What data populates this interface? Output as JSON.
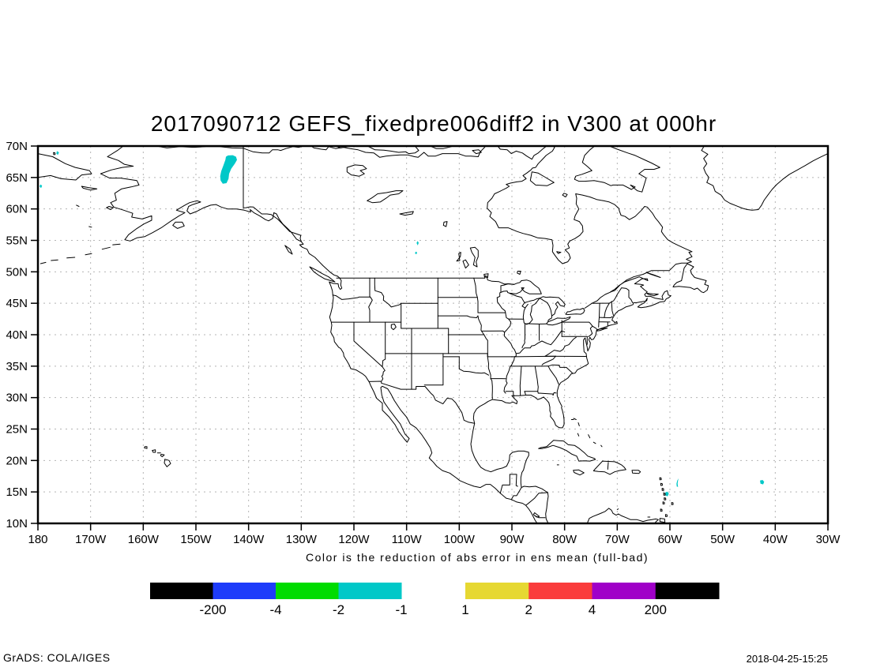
{
  "title": "2017090712 GEFS_fixedpre006diff2 in V300 at 000hr",
  "caption": "Color is the reduction of abs error in ens mean (full-bad)",
  "footer": {
    "left": "GrADS: COLA/IGES",
    "right": "2018-04-25-15:25"
  },
  "map": {
    "lon_min": -180,
    "lon_max": -30,
    "lat_min": 10,
    "lat_max": 70,
    "grid_color": "#b4b4b4",
    "line_color": "#000000",
    "lat_ticks": [
      {
        "lat": 70,
        "label": "70N"
      },
      {
        "lat": 65,
        "label": "65N"
      },
      {
        "lat": 60,
        "label": "60N"
      },
      {
        "lat": 55,
        "label": "55N"
      },
      {
        "lat": 50,
        "label": "50N"
      },
      {
        "lat": 45,
        "label": "45N"
      },
      {
        "lat": 40,
        "label": "40N"
      },
      {
        "lat": 35,
        "label": "35N"
      },
      {
        "lat": 30,
        "label": "30N"
      },
      {
        "lat": 25,
        "label": "25N"
      },
      {
        "lat": 20,
        "label": "20N"
      },
      {
        "lat": 15,
        "label": "15N"
      },
      {
        "lat": 10,
        "label": "10N"
      }
    ],
    "lon_ticks": [
      {
        "lon": -180,
        "label": "180"
      },
      {
        "lon": -170,
        "label": "170W"
      },
      {
        "lon": -160,
        "label": "160W"
      },
      {
        "lon": -150,
        "label": "150W"
      },
      {
        "lon": -140,
        "label": "140W"
      },
      {
        "lon": -130,
        "label": "130W"
      },
      {
        "lon": -120,
        "label": "120W"
      },
      {
        "lon": -110,
        "label": "110W"
      },
      {
        "lon": -100,
        "label": "100W"
      },
      {
        "lon": -90,
        "label": "90W"
      },
      {
        "lon": -80,
        "label": "80W"
      },
      {
        "lon": -70,
        "label": "70W"
      },
      {
        "lon": -60,
        "label": "60W"
      },
      {
        "lon": -50,
        "label": "50W"
      },
      {
        "lon": -40,
        "label": "40W"
      },
      {
        "lon": -30,
        "label": "30W"
      }
    ]
  },
  "colorbar": {
    "left": {
      "segments": [
        "#000000",
        "#1e3cfa",
        "#00dc00",
        "#00c8c8"
      ],
      "labels": [
        "-200",
        "-4",
        "-2",
        "-1"
      ],
      "labels_at": "segment-end"
    },
    "right": {
      "segments": [
        "#e6d832",
        "#fa3c3c",
        "#a000c8",
        "#000000"
      ],
      "labels": [
        "1",
        "2",
        "4",
        "200"
      ],
      "labels_at": "segment-start"
    }
  },
  "shaded_regions": {
    "color": "#00c8c8",
    "polygons_lonlat": [
      [
        [
          -143.9,
          68.5
        ],
        [
          -143.0,
          68.55
        ],
        [
          -142.4,
          68.3
        ],
        [
          -142.2,
          67.8
        ],
        [
          -142.6,
          67.2
        ],
        [
          -143.3,
          66.4
        ],
        [
          -143.7,
          65.6
        ],
        [
          -143.8,
          64.8
        ],
        [
          -144.2,
          64.1
        ],
        [
          -144.9,
          64.0
        ],
        [
          -145.3,
          64.5
        ],
        [
          -145.4,
          65.2
        ],
        [
          -145.2,
          66.0
        ],
        [
          -144.8,
          66.9
        ],
        [
          -144.4,
          67.8
        ],
        [
          -144.3,
          68.3
        ]
      ],
      [
        [
          -176.4,
          69.2
        ],
        [
          -176.0,
          69.0
        ],
        [
          -176.2,
          68.6
        ],
        [
          -176.5,
          68.8
        ]
      ],
      [
        [
          -179.5,
          63.9
        ],
        [
          -179.2,
          63.7
        ],
        [
          -179.4,
          63.3
        ],
        [
          -179.7,
          63.6
        ]
      ],
      [
        [
          -107.9,
          54.9
        ],
        [
          -107.7,
          54.6
        ],
        [
          -107.9,
          54.2
        ],
        [
          -108.1,
          54.6
        ]
      ],
      [
        [
          -108.3,
          53.2
        ],
        [
          -108.0,
          53.1
        ],
        [
          -108.1,
          52.8
        ],
        [
          -108.4,
          52.9
        ]
      ],
      [
        [
          -58.35,
          17.15
        ],
        [
          -58.6,
          16.8
        ],
        [
          -58.75,
          16.3
        ],
        [
          -58.7,
          15.85
        ],
        [
          -58.45,
          15.8
        ],
        [
          -58.55,
          16.3
        ],
        [
          -58.45,
          16.8
        ]
      ],
      [
        [
          -60.9,
          14.9
        ],
        [
          -60.5,
          15.05
        ],
        [
          -60.2,
          14.75
        ],
        [
          -60.45,
          14.3
        ],
        [
          -60.85,
          14.45
        ]
      ],
      [
        [
          -42.9,
          16.8
        ],
        [
          -42.4,
          16.9
        ],
        [
          -42.1,
          16.6
        ],
        [
          -42.3,
          16.2
        ],
        [
          -42.8,
          16.3
        ]
      ]
    ]
  }
}
